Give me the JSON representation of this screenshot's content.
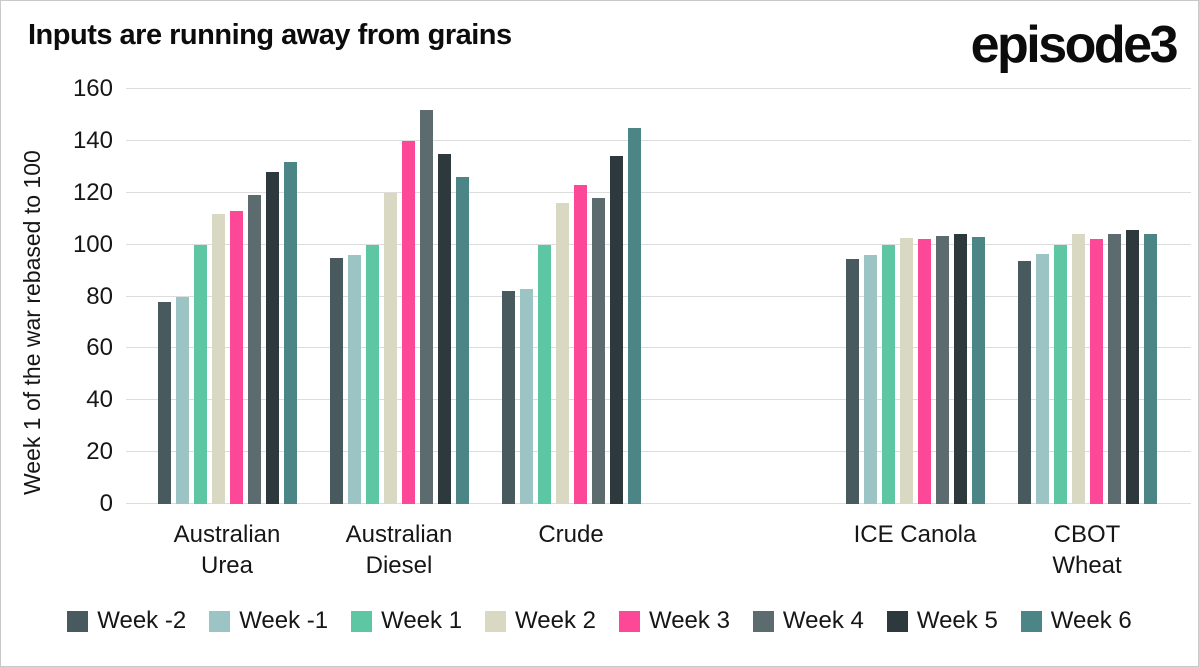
{
  "header": {
    "title": "Inputs are running away from grains",
    "logo_text": "episode3"
  },
  "chart_data": {
    "type": "bar",
    "title": "Inputs are running away from grains",
    "ylabel": "Week 1 of the war rebased to 100",
    "xlabel": "",
    "ylim": [
      0,
      160
    ],
    "y_tick_step": 20,
    "grid": true,
    "legend_position": "bottom",
    "categories": [
      "Australian Urea",
      "Australian Diesel",
      "Crude",
      "ICE Canola",
      "CBOT Wheat"
    ],
    "series": [
      {
        "name": "Week -2",
        "color": "#485a5e",
        "values": [
          78,
          95,
          82,
          94.5,
          93.5
        ]
      },
      {
        "name": "Week -1",
        "color": "#9dc4c5",
        "values": [
          80,
          96,
          83,
          96,
          96.5
        ]
      },
      {
        "name": "Week 1",
        "color": "#5cc7a2",
        "values": [
          100,
          100,
          100,
          100,
          100
        ]
      },
      {
        "name": "Week 2",
        "color": "#d9d9c3",
        "values": [
          112,
          120,
          116,
          102.5,
          104
        ]
      },
      {
        "name": "Week 3",
        "color": "#fc4896",
        "values": [
          113,
          140,
          123,
          102,
          102
        ]
      },
      {
        "name": "Week 4",
        "color": "#5c6b6e",
        "values": [
          119,
          152,
          118,
          103.5,
          104
        ]
      },
      {
        "name": "Week 5",
        "color": "#2d393c",
        "values": [
          128,
          135,
          134,
          104,
          105.5
        ]
      },
      {
        "name": "Week 6",
        "color": "#4c8586",
        "values": [
          132,
          126,
          145,
          103,
          104
        ]
      }
    ],
    "layout": {
      "slots": 6,
      "category_slot_indices": [
        0,
        1,
        2,
        4,
        5
      ],
      "category_label_lines": [
        [
          "Australian",
          "Urea"
        ],
        [
          "Australian",
          "Diesel"
        ],
        [
          "Crude"
        ],
        [
          "ICE Canola"
        ],
        [
          "CBOT",
          "Wheat"
        ]
      ]
    }
  },
  "colors": {
    "grid": "#dddddd",
    "text": "#161616",
    "background": "#ffffff"
  }
}
